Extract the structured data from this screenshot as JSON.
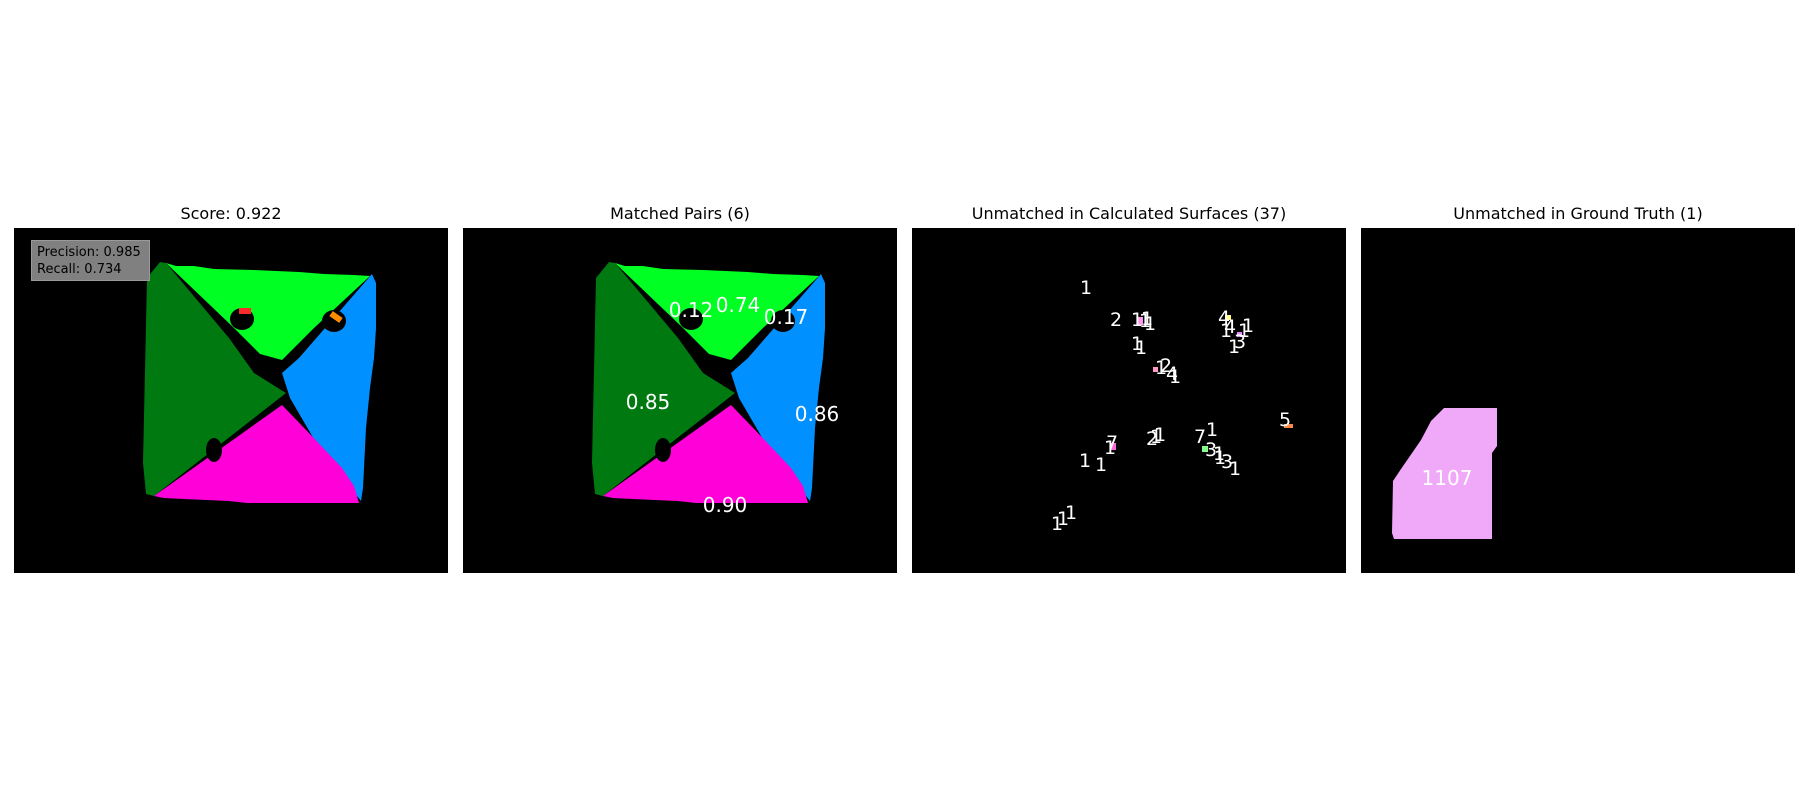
{
  "panels": [
    {
      "title": "Score: 0.922"
    },
    {
      "title": "Matched Pairs (6)"
    },
    {
      "title": "Unmatched in Calculated Surfaces (37)"
    },
    {
      "title": "Unmatched in Ground Truth (1)"
    }
  ],
  "metrics": {
    "precision": "Precision: 0.985",
    "recall": "Recall: 0.734"
  },
  "matched_labels": [
    "0.12",
    "0.74",
    "0.17",
    "0.85",
    "0.86",
    "0.90"
  ],
  "unmatched_calc_labels": [
    "1",
    "2",
    "1",
    "1",
    "1",
    "1",
    "1",
    "4",
    "1",
    "4",
    "1",
    "1",
    "1",
    "3",
    "1",
    "1",
    "2",
    "4",
    "1",
    "5",
    "1",
    "7",
    "2",
    "1",
    "1",
    "7",
    "3",
    "1",
    "3",
    "1",
    "1",
    "1",
    "1",
    "1",
    "1",
    "1",
    "1"
  ],
  "unmatched_gt_labels": [
    "1107"
  ],
  "colors": {
    "light_green": "#00ff22",
    "dark_green": "#007a10",
    "blue": "#0090ff",
    "magenta": "#ff00d8",
    "gt_pink": "#f0a8f8",
    "background": "#000000"
  }
}
